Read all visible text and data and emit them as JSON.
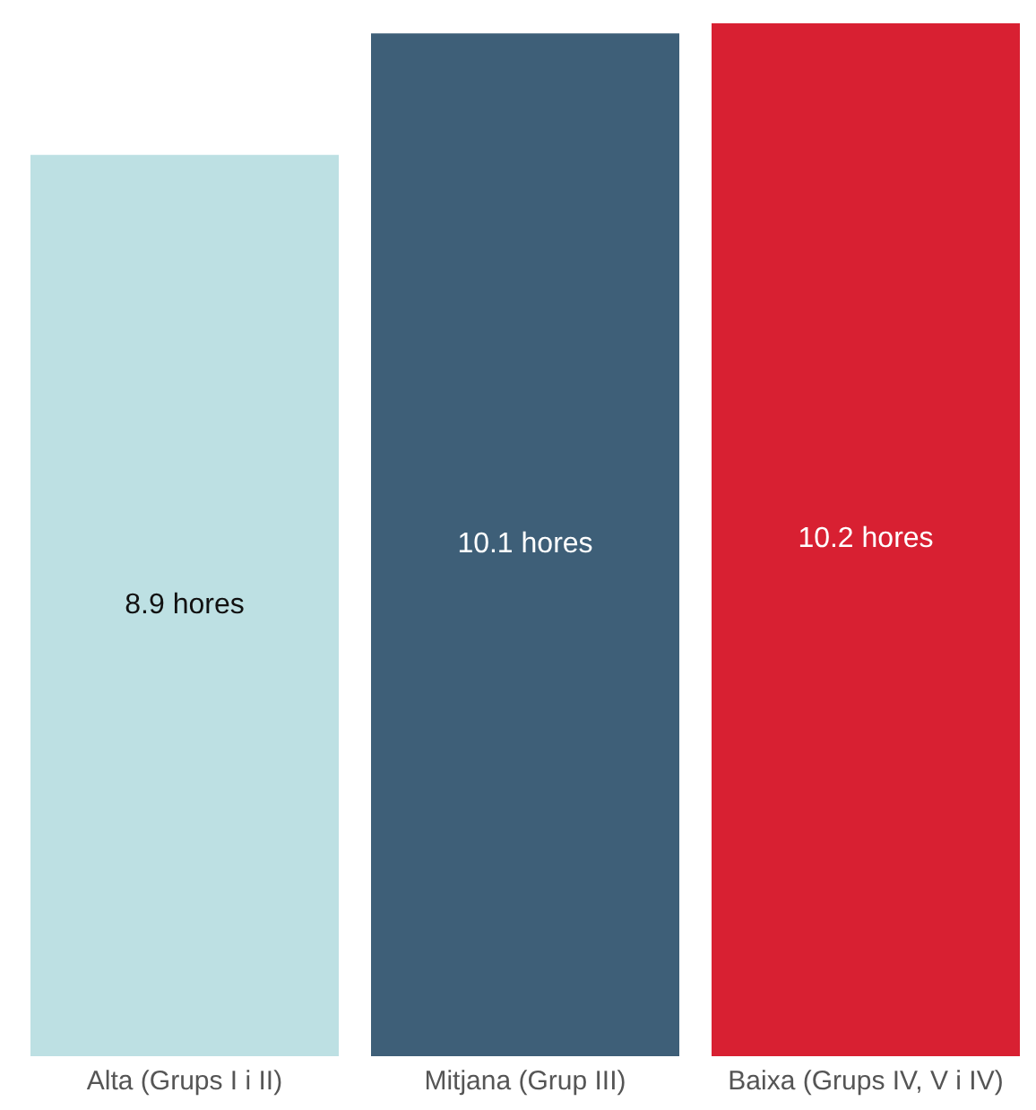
{
  "chart_data": {
    "type": "bar",
    "categories": [
      "Alta (Grups I i II)",
      "Mitjana (Grup III)",
      "Baixa (Grups IV, V i IV)"
    ],
    "values": [
      8.9,
      10.1,
      10.2
    ],
    "colors": [
      "#bde0e3",
      "#3e5f78",
      "#d82032"
    ],
    "value_labels": [
      "8.9 hores",
      "10.1 hores",
      "10.2 hores"
    ],
    "grid": false,
    "legend": false
  }
}
